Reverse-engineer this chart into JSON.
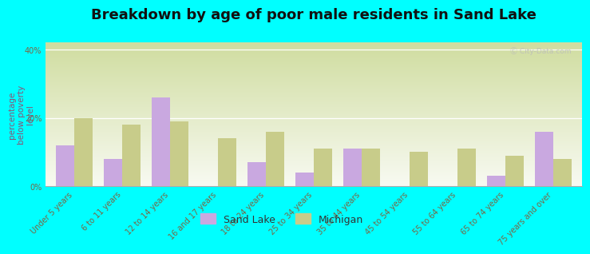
{
  "title": "Breakdown by age of poor male residents in Sand Lake",
  "categories": [
    "Under 5 years",
    "6 to 11 years",
    "12 to 14 years",
    "16 and 17 years",
    "18 to 24 years",
    "25 to 34 years",
    "35 to 44 years",
    "45 to 54 years",
    "55 to 64 years",
    "65 to 74 years",
    "75 years and over"
  ],
  "sand_lake": [
    12,
    8,
    26,
    0,
    7,
    4,
    11,
    0,
    0,
    3,
    16
  ],
  "michigan": [
    20,
    18,
    19,
    14,
    16,
    11,
    11,
    10,
    11,
    9,
    8
  ],
  "sand_lake_color": "#c9a8e0",
  "michigan_color": "#c8cc8a",
  "background_color": "#00ffff",
  "plot_bg_top": "#d0dda0",
  "plot_bg_bottom": "#f8faf2",
  "ylabel": "percentage\nbelow poverty\nlevel",
  "ylim": [
    0,
    42
  ],
  "yticks": [
    0,
    20,
    40
  ],
  "ytick_labels": [
    "0%",
    "20%",
    "40%"
  ],
  "bar_width": 0.38,
  "title_fontsize": 13,
  "axis_label_fontsize": 7.5,
  "tick_fontsize": 7,
  "legend_fontsize": 9
}
